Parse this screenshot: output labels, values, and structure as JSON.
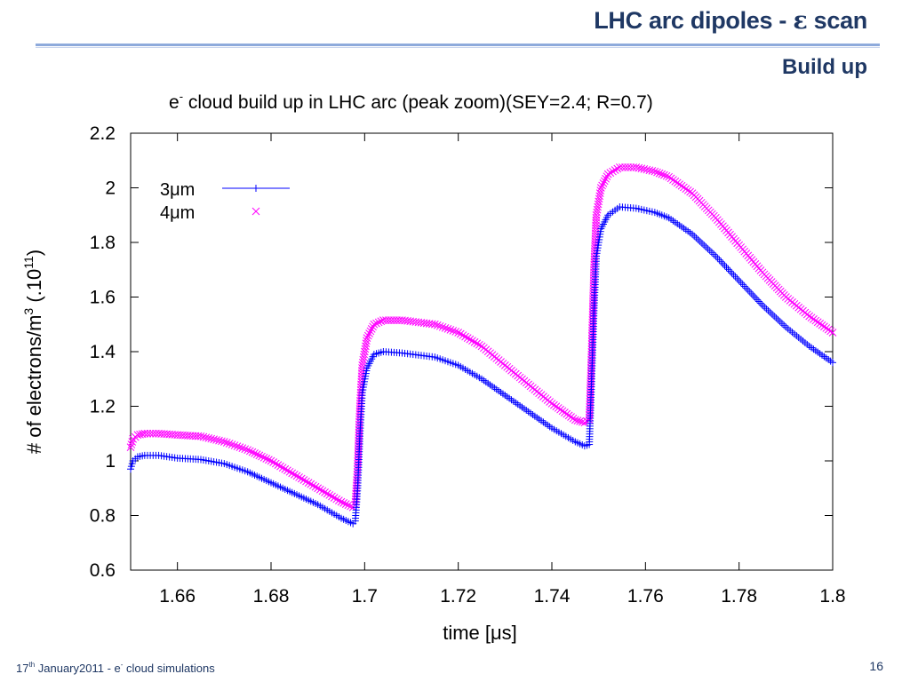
{
  "slide": {
    "title_prefix": "LHC arc dipoles - ",
    "title_symbol": "ε",
    "title_suffix": " scan",
    "subtitle": "Build up",
    "footer_date_day": "17",
    "footer_date_sup": "th",
    "footer_date_rest": " January2011  -  e",
    "footer_e_sup": "-",
    "footer_rest": " cloud simulations",
    "page_number": "16"
  },
  "colors": {
    "title": "#1f3864",
    "series_3um": "#0000ff",
    "series_4um": "#ff00ff"
  },
  "chart_data": {
    "type": "scatter",
    "title_pre": "e",
    "title_sup": "-",
    "title_post": " cloud build up in LHC arc (peak zoom)(SEY=2.4; R=0.7)",
    "xlabel": "time [μs]",
    "ylabel_main": "# of electrons/m",
    "ylabel_sup": "3",
    "ylabel_post_a": " (.10",
    "ylabel_post_sup": "11",
    "ylabel_post_b": ")",
    "xlim": [
      1.65,
      1.8
    ],
    "ylim": [
      0.6,
      2.2
    ],
    "xticks": [
      "1.66",
      "1.68",
      "1.7",
      "1.72",
      "1.74",
      "1.76",
      "1.78",
      "1.8"
    ],
    "yticks": [
      "0.6",
      "0.8",
      "1",
      "1.2",
      "1.4",
      "1.6",
      "1.8",
      "2",
      "2.2"
    ],
    "legend_position": "top-left",
    "grid": false,
    "series": [
      {
        "name": "3μm",
        "marker": "plus",
        "color": "#0000ff",
        "points": [
          [
            1.65,
            0.97
          ],
          [
            1.6505,
            1.0
          ],
          [
            1.6515,
            1.015
          ],
          [
            1.653,
            1.02
          ],
          [
            1.656,
            1.02
          ],
          [
            1.66,
            1.01
          ],
          [
            1.665,
            1.005
          ],
          [
            1.67,
            0.99
          ],
          [
            1.675,
            0.96
          ],
          [
            1.68,
            0.92
          ],
          [
            1.685,
            0.88
          ],
          [
            1.69,
            0.84
          ],
          [
            1.695,
            0.79
          ],
          [
            1.6975,
            0.77
          ],
          [
            1.698,
            0.78
          ],
          [
            1.6985,
            0.9
          ],
          [
            1.699,
            1.1
          ],
          [
            1.6995,
            1.25
          ],
          [
            1.7005,
            1.34
          ],
          [
            1.702,
            1.39
          ],
          [
            1.704,
            1.4
          ],
          [
            1.708,
            1.395
          ],
          [
            1.715,
            1.38
          ],
          [
            1.72,
            1.35
          ],
          [
            1.725,
            1.3
          ],
          [
            1.73,
            1.24
          ],
          [
            1.735,
            1.18
          ],
          [
            1.74,
            1.12
          ],
          [
            1.745,
            1.07
          ],
          [
            1.747,
            1.055
          ],
          [
            1.748,
            1.06
          ],
          [
            1.7485,
            1.3
          ],
          [
            1.749,
            1.55
          ],
          [
            1.7495,
            1.75
          ],
          [
            1.7505,
            1.85
          ],
          [
            1.752,
            1.9
          ],
          [
            1.7545,
            1.93
          ],
          [
            1.758,
            1.925
          ],
          [
            1.762,
            1.91
          ],
          [
            1.765,
            1.89
          ],
          [
            1.77,
            1.83
          ],
          [
            1.775,
            1.75
          ],
          [
            1.78,
            1.66
          ],
          [
            1.785,
            1.57
          ],
          [
            1.79,
            1.49
          ],
          [
            1.795,
            1.42
          ],
          [
            1.8,
            1.36
          ]
        ]
      },
      {
        "name": "4μm",
        "marker": "cross",
        "color": "#ff00ff",
        "points": [
          [
            1.65,
            1.05
          ],
          [
            1.6505,
            1.08
          ],
          [
            1.6515,
            1.095
          ],
          [
            1.653,
            1.1
          ],
          [
            1.656,
            1.1
          ],
          [
            1.66,
            1.095
          ],
          [
            1.665,
            1.09
          ],
          [
            1.67,
            1.07
          ],
          [
            1.675,
            1.04
          ],
          [
            1.68,
            1.0
          ],
          [
            1.685,
            0.95
          ],
          [
            1.69,
            0.9
          ],
          [
            1.695,
            0.85
          ],
          [
            1.6975,
            0.83
          ],
          [
            1.698,
            0.84
          ],
          [
            1.6985,
            0.98
          ],
          [
            1.699,
            1.2
          ],
          [
            1.6995,
            1.35
          ],
          [
            1.7005,
            1.45
          ],
          [
            1.702,
            1.5
          ],
          [
            1.704,
            1.515
          ],
          [
            1.708,
            1.515
          ],
          [
            1.715,
            1.5
          ],
          [
            1.72,
            1.47
          ],
          [
            1.725,
            1.42
          ],
          [
            1.73,
            1.35
          ],
          [
            1.735,
            1.28
          ],
          [
            1.74,
            1.21
          ],
          [
            1.745,
            1.15
          ],
          [
            1.747,
            1.14
          ],
          [
            1.748,
            1.15
          ],
          [
            1.7485,
            1.4
          ],
          [
            1.749,
            1.7
          ],
          [
            1.7495,
            1.9
          ],
          [
            1.7505,
            2.0
          ],
          [
            1.752,
            2.05
          ],
          [
            1.7545,
            2.075
          ],
          [
            1.758,
            2.075
          ],
          [
            1.762,
            2.06
          ],
          [
            1.765,
            2.04
          ],
          [
            1.77,
            1.98
          ],
          [
            1.775,
            1.89
          ],
          [
            1.78,
            1.79
          ],
          [
            1.785,
            1.69
          ],
          [
            1.79,
            1.6
          ],
          [
            1.795,
            1.53
          ],
          [
            1.8,
            1.47
          ]
        ]
      }
    ]
  }
}
